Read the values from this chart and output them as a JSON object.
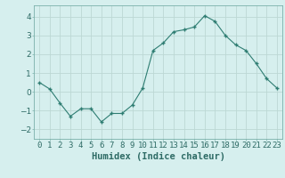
{
  "x": [
    0,
    1,
    2,
    3,
    4,
    5,
    6,
    7,
    8,
    9,
    10,
    11,
    12,
    13,
    14,
    15,
    16,
    17,
    18,
    19,
    20,
    21,
    22,
    23
  ],
  "y": [
    0.5,
    0.15,
    -0.6,
    -1.3,
    -0.9,
    -0.9,
    -1.6,
    -1.15,
    -1.15,
    -0.7,
    0.2,
    2.2,
    2.6,
    3.2,
    3.3,
    3.45,
    4.05,
    3.75,
    3.0,
    2.5,
    2.2,
    1.5,
    0.7,
    0.2
  ],
  "line_color": "#2e7d72",
  "bg_color": "#d6efee",
  "grid_color": "#bcd8d4",
  "xlabel": "Humidex (Indice chaleur)",
  "ylim": [
    -2.5,
    4.6
  ],
  "xlim": [
    -0.5,
    23.5
  ],
  "yticks": [
    -2,
    -1,
    0,
    1,
    2,
    3,
    4
  ],
  "xtick_labels": [
    "0",
    "1",
    "2",
    "3",
    "4",
    "5",
    "6",
    "7",
    "8",
    "9",
    "10",
    "11",
    "12",
    "13",
    "14",
    "15",
    "16",
    "17",
    "18",
    "19",
    "20",
    "21",
    "22",
    "23"
  ],
  "xlabel_fontsize": 7.5,
  "tick_fontsize": 6.5
}
